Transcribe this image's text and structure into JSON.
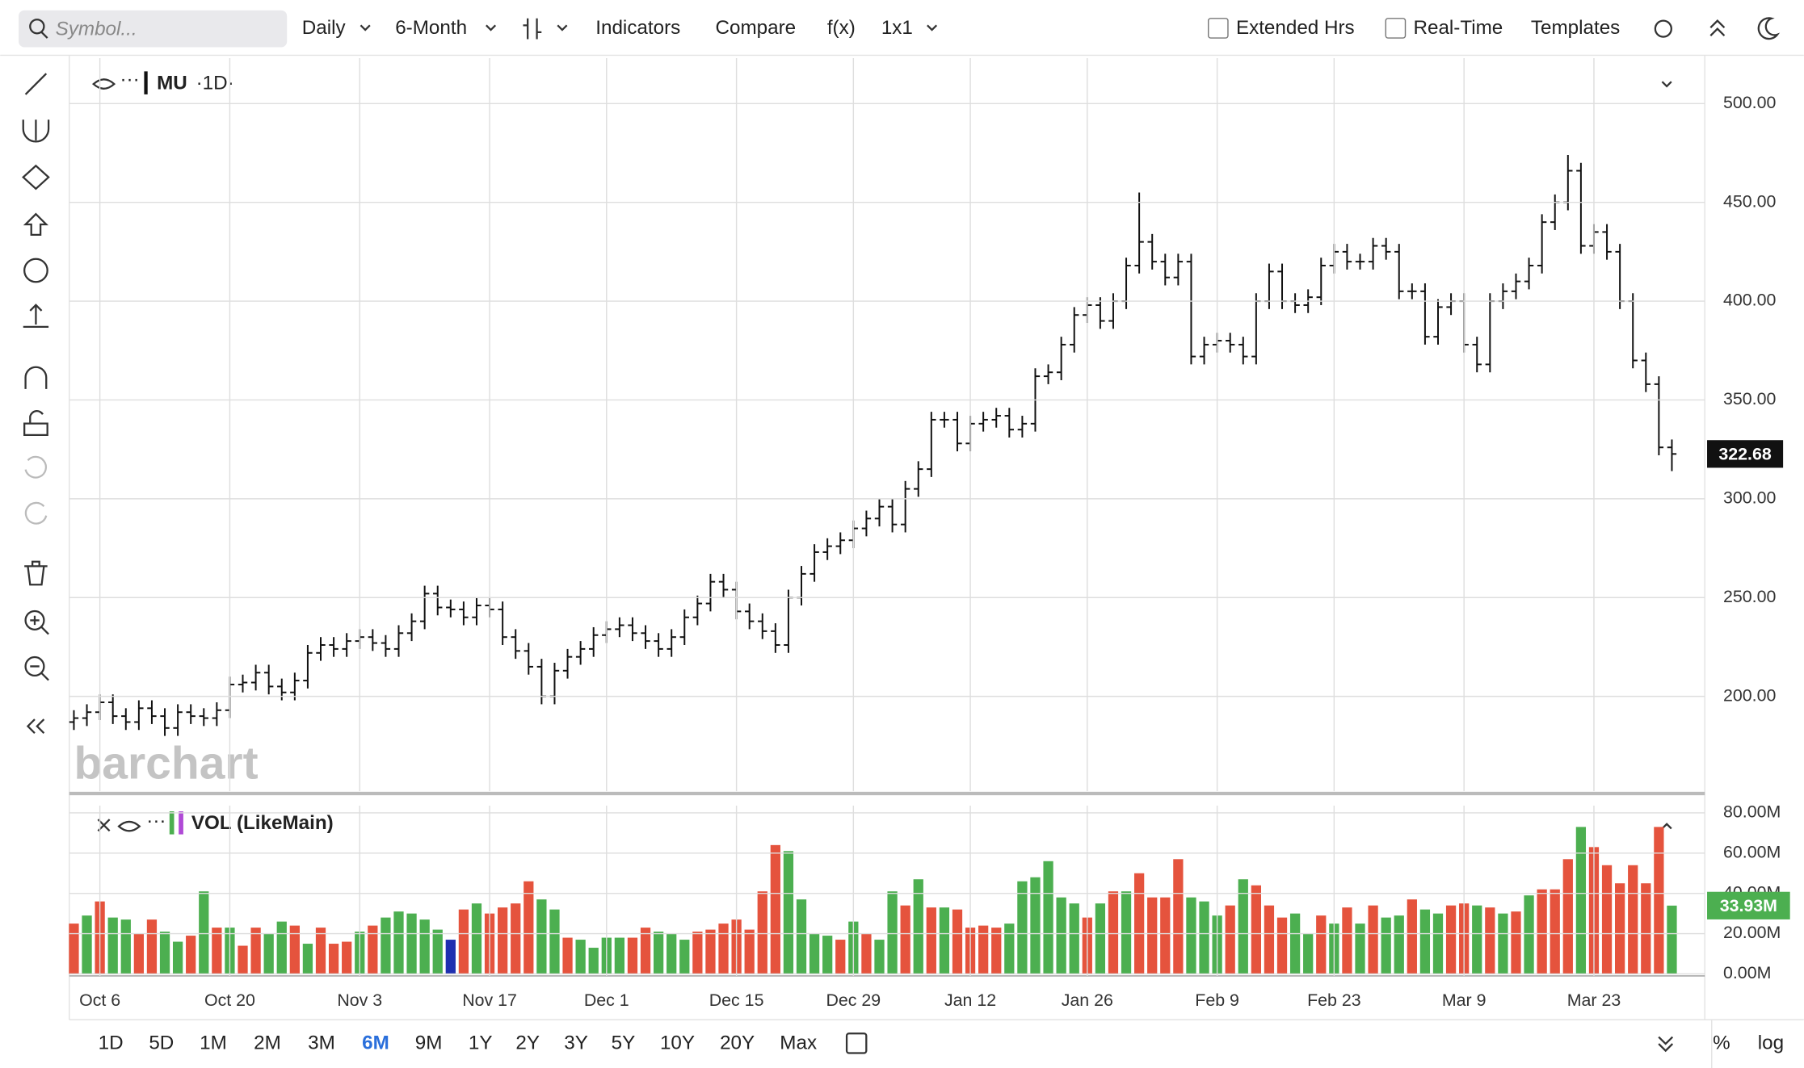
{
  "toolbar": {
    "search": "Symbol...",
    "interval": "Daily",
    "period": "6-Month",
    "indicators": "Indicators",
    "compare": "Compare",
    "fx": "f(x)",
    "layout": "1x1",
    "extended": "Extended Hrs",
    "realtime": "Real-Time",
    "templates": "Templates"
  },
  "watermark": "barchart",
  "ranges": [
    "1D",
    "5D",
    "1M",
    "2M",
    "3M",
    "6M",
    "9M",
    "1Y",
    "2Y",
    "3Y",
    "5Y",
    "10Y",
    "20Y",
    "Max"
  ],
  "active_range": "6M",
  "bottom_right": {
    "percent": "%",
    "log": "log"
  },
  "chart_data": [
    {
      "type": "ohlc",
      "symbol": "MU",
      "interval_label": "·1D·",
      "color": "#111111",
      "categories": [
        null,
        null,
        "Oct 6",
        null,
        null,
        null,
        null,
        null,
        null,
        null,
        null,
        null,
        "Oct 20",
        null,
        null,
        null,
        null,
        null,
        null,
        null,
        null,
        null,
        "Nov 3",
        null,
        null,
        null,
        null,
        null,
        null,
        null,
        null,
        null,
        "Nov 17",
        null,
        null,
        null,
        null,
        null,
        null,
        null,
        null,
        "Dec 1",
        null,
        null,
        null,
        null,
        null,
        null,
        null,
        null,
        null,
        "Dec 15",
        null,
        null,
        null,
        null,
        null,
        null,
        null,
        null,
        "Dec 29",
        null,
        null,
        null,
        null,
        null,
        null,
        null,
        null,
        "Jan 12",
        null,
        null,
        null,
        null,
        null,
        null,
        null,
        null,
        "Jan 26",
        null,
        null,
        null,
        null,
        null,
        null,
        null,
        null,
        null,
        "Feb 9",
        null,
        null,
        null,
        null,
        null,
        null,
        null,
        null,
        "Feb 23",
        null,
        null,
        null,
        null,
        null,
        null,
        null,
        null,
        null,
        "Mar 9",
        null,
        null,
        null,
        null,
        null,
        null,
        null,
        null,
        null,
        "Mar 23",
        null,
        null,
        null,
        null,
        null,
        null
      ],
      "open": [
        187,
        189,
        192,
        197,
        190,
        187,
        194,
        190,
        184,
        192,
        190,
        189,
        193,
        206,
        207,
        212,
        205,
        202,
        208,
        222,
        226,
        224,
        228,
        230,
        227,
        224,
        232,
        238,
        252,
        245,
        244,
        240,
        246,
        244,
        230,
        223,
        215,
        200,
        213,
        220,
        224,
        231,
        234,
        236,
        232,
        228,
        224,
        230,
        240,
        247,
        258,
        254,
        243,
        238,
        233,
        226,
        250,
        262,
        273,
        276,
        279,
        285,
        290,
        296,
        287,
        305,
        315,
        340,
        340,
        328,
        338,
        340,
        342,
        335,
        338,
        362,
        364,
        378,
        393,
        398,
        390,
        400,
        418,
        430,
        420,
        412,
        420,
        372,
        378,
        380,
        378,
        372,
        400,
        415,
        400,
        398,
        402,
        418,
        425,
        420,
        420,
        428,
        425,
        405,
        405,
        382,
        397,
        400,
        378,
        368,
        400,
        405,
        410,
        418,
        440,
        450,
        466,
        428,
        435,
        425,
        400,
        370,
        358,
        326
      ],
      "high": [
        193,
        196,
        201,
        201,
        194,
        198,
        198,
        194,
        196,
        196,
        194,
        197,
        210,
        211,
        216,
        216,
        209,
        212,
        226,
        230,
        230,
        232,
        234,
        234,
        231,
        236,
        242,
        256,
        256,
        249,
        248,
        250,
        250,
        248,
        234,
        227,
        219,
        217,
        224,
        228,
        235,
        238,
        240,
        240,
        236,
        232,
        234,
        244,
        251,
        262,
        262,
        258,
        247,
        242,
        237,
        254,
        266,
        277,
        280,
        283,
        289,
        294,
        300,
        300,
        309,
        319,
        344,
        344,
        344,
        342,
        344,
        346,
        346,
        342,
        366,
        368,
        382,
        397,
        402,
        402,
        404,
        422,
        455,
        434,
        424,
        424,
        424,
        382,
        384,
        384,
        382,
        404,
        419,
        419,
        404,
        406,
        422,
        429,
        429,
        424,
        432,
        432,
        429,
        409,
        409,
        401,
        404,
        404,
        382,
        404,
        409,
        414,
        422,
        444,
        454,
        474,
        470,
        439,
        439,
        429,
        404,
        374,
        362,
        330
      ],
      "low": [
        183,
        185,
        188,
        186,
        183,
        183,
        186,
        180,
        180,
        186,
        185,
        185,
        189,
        202,
        203,
        201,
        198,
        198,
        204,
        218,
        220,
        220,
        224,
        223,
        220,
        220,
        228,
        234,
        241,
        240,
        236,
        236,
        240,
        226,
        219,
        211,
        196,
        196,
        209,
        216,
        220,
        227,
        230,
        228,
        224,
        220,
        220,
        226,
        236,
        243,
        250,
        239,
        234,
        229,
        222,
        222,
        246,
        258,
        269,
        272,
        275,
        281,
        286,
        283,
        283,
        301,
        311,
        336,
        324,
        324,
        334,
        336,
        331,
        331,
        334,
        358,
        360,
        374,
        389,
        386,
        386,
        396,
        414,
        416,
        408,
        408,
        368,
        368,
        374,
        374,
        368,
        368,
        396,
        396,
        394,
        394,
        398,
        414,
        416,
        416,
        416,
        421,
        401,
        401,
        378,
        378,
        393,
        374,
        364,
        364,
        396,
        401,
        406,
        414,
        436,
        446,
        424,
        424,
        421,
        396,
        366,
        354,
        322,
        314
      ],
      "close": [
        189,
        192,
        197,
        190,
        187,
        194,
        190,
        184,
        192,
        190,
        189,
        193,
        206,
        207,
        212,
        205,
        202,
        208,
        222,
        226,
        224,
        228,
        230,
        227,
        224,
        232,
        238,
        252,
        245,
        244,
        240,
        246,
        244,
        230,
        223,
        215,
        200,
        213,
        220,
        224,
        231,
        234,
        236,
        232,
        228,
        224,
        230,
        240,
        247,
        258,
        254,
        243,
        238,
        233,
        226,
        250,
        262,
        273,
        276,
        279,
        285,
        290,
        296,
        287,
        305,
        315,
        340,
        340,
        328,
        338,
        340,
        342,
        335,
        338,
        362,
        364,
        378,
        393,
        398,
        390,
        400,
        418,
        430,
        420,
        412,
        420,
        372,
        378,
        380,
        378,
        372,
        400,
        415,
        400,
        398,
        402,
        418,
        425,
        420,
        420,
        428,
        425,
        405,
        405,
        382,
        397,
        400,
        378,
        368,
        400,
        405,
        410,
        418,
        440,
        450,
        466,
        428,
        435,
        425,
        400,
        370,
        358,
        326,
        322.68
      ],
      "ylim": [
        152,
        523
      ],
      "yticks": [
        {
          "value": 200,
          "label": "200.00"
        },
        {
          "value": 250,
          "label": "250.00"
        },
        {
          "value": 300,
          "label": "300.00"
        },
        {
          "value": 350,
          "label": "350.00"
        },
        {
          "value": 400,
          "label": "400.00"
        },
        {
          "value": 450,
          "label": "450.00"
        },
        {
          "value": 500,
          "label": "500.00"
        }
      ],
      "grid": true
    },
    {
      "type": "bar",
      "indicator": "VOL (LikeMain)",
      "values": [
        25,
        29,
        36,
        28,
        27,
        20,
        27,
        21,
        16,
        19,
        41,
        23,
        23,
        14,
        23,
        20,
        26,
        24,
        15,
        23,
        15,
        16,
        21,
        24,
        28,
        31,
        30,
        27,
        22,
        17,
        32,
        35,
        30,
        33,
        35,
        46,
        37,
        32,
        18,
        17,
        13,
        18,
        18,
        18,
        23,
        21,
        20,
        17,
        21,
        22,
        25,
        27,
        22,
        41,
        64,
        61,
        37,
        20,
        19,
        17,
        26,
        20,
        17,
        41,
        34,
        47,
        33,
        33,
        32,
        23,
        24,
        23,
        25,
        46,
        48,
        56,
        38,
        35,
        28,
        35,
        41,
        41,
        50,
        38,
        38,
        57,
        38,
        36,
        29,
        34,
        47,
        44,
        34,
        28,
        30,
        20,
        29,
        25,
        33,
        25,
        34,
        28,
        29,
        37,
        32,
        30,
        34,
        35,
        34,
        33,
        30,
        31,
        39,
        42,
        42,
        57,
        73,
        63,
        54,
        45,
        54,
        45,
        73,
        33.93
      ],
      "value_labels": {
        "123": "33.93M"
      },
      "colors": [
        "#e5533d",
        "#4caf50",
        "#e5533d",
        "#4caf50",
        "#4caf50",
        "#e5533d",
        "#e5533d",
        "#4caf50",
        "#4caf50",
        "#e5533d",
        "#4caf50",
        "#e5533d",
        "#4caf50",
        "#e5533d",
        "#e5533d",
        "#4caf50",
        "#4caf50",
        "#e5533d",
        "#4caf50",
        "#e5533d",
        "#e5533d",
        "#e5533d",
        "#4caf50",
        "#e5533d",
        "#4caf50",
        "#4caf50",
        "#4caf50",
        "#4caf50",
        "#4caf50",
        "#1f2fb0",
        "#e5533d",
        "#4caf50",
        "#e5533d",
        "#e5533d",
        "#e5533d",
        "#e5533d",
        "#4caf50",
        "#4caf50",
        "#e5533d",
        "#4caf50",
        "#4caf50",
        "#4caf50",
        "#4caf50",
        "#e5533d",
        "#e5533d",
        "#4caf50",
        "#4caf50",
        "#4caf50",
        "#e5533d",
        "#e5533d",
        "#e5533d",
        "#e5533d",
        "#e5533d",
        "#e5533d",
        "#e5533d",
        "#4caf50",
        "#4caf50",
        "#4caf50",
        "#4caf50",
        "#e5533d",
        "#4caf50",
        "#e5533d",
        "#4caf50",
        "#4caf50",
        "#e5533d",
        "#4caf50",
        "#e5533d",
        "#4caf50",
        "#e5533d",
        "#e5533d",
        "#e5533d",
        "#e5533d",
        "#4caf50",
        "#4caf50",
        "#4caf50",
        "#4caf50",
        "#4caf50",
        "#4caf50",
        "#e5533d",
        "#4caf50",
        "#e5533d",
        "#4caf50",
        "#e5533d",
        "#e5533d",
        "#e5533d",
        "#e5533d",
        "#4caf50",
        "#4caf50",
        "#4caf50",
        "#e5533d",
        "#4caf50",
        "#e5533d",
        "#e5533d",
        "#e5533d",
        "#4caf50",
        "#4caf50",
        "#e5533d",
        "#4caf50",
        "#e5533d",
        "#4caf50",
        "#e5533d",
        "#4caf50",
        "#4caf50",
        "#e5533d",
        "#4caf50",
        "#4caf50",
        "#e5533d",
        "#e5533d",
        "#4caf50",
        "#e5533d",
        "#4caf50",
        "#e5533d",
        "#4caf50",
        "#e5533d",
        "#e5533d",
        "#e5533d",
        "#4caf50",
        "#e5533d",
        "#e5533d",
        "#e5533d",
        "#e5533d",
        "#e5533d",
        "#e5533d",
        "#4caf50"
      ],
      "ylim": [
        -1,
        83.6
      ],
      "yticks": [
        {
          "value": 0,
          "label": "0.00M"
        },
        {
          "value": 20,
          "label": "20.00M"
        },
        {
          "value": 40,
          "label": "40.00M"
        },
        {
          "value": 60,
          "label": "60.00M"
        },
        {
          "value": 80,
          "label": "80.00M"
        }
      ],
      "grid": true
    }
  ]
}
